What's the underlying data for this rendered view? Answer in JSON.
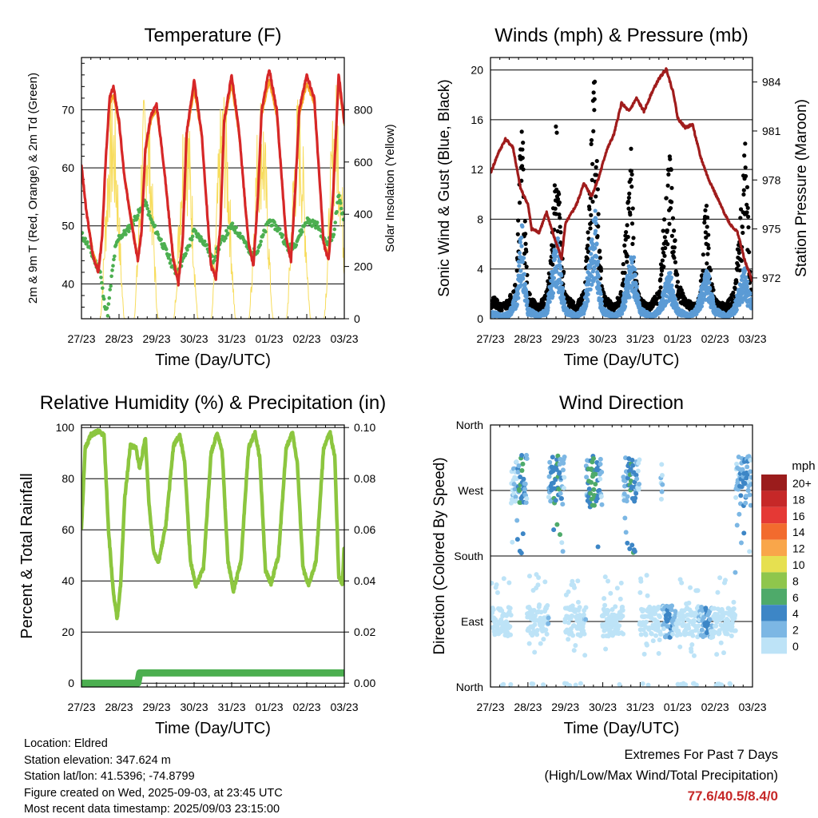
{
  "info": {
    "location": "Location: Eldred",
    "elevation": "Station elevation: 347.624 m",
    "latlon": "Station lat/lon: 41.5396; -74.8799",
    "created": "Figure created on Wed, 2025-09-03, at 23:45 UTC",
    "latest": "Most recent data timestamp: 2025/09/03 23:15:00"
  },
  "extremes": {
    "title": "Extremes For Past 7 Days",
    "subtitle": "(High/Low/Max Wind/Total Precipitation)",
    "values": "77.6/40.5/8.4/0",
    "color": "#c62828"
  },
  "colors": {
    "temp_2m": "#d62728",
    "temp_9m": "#f5a623",
    "dewpoint": "#4caf50",
    "solar": "#f7dc5b",
    "gust": "#000000",
    "wind": "#5b9bd5",
    "pressure": "#a01c1c",
    "rh": "#8cc63f",
    "rain": "#4caf50"
  },
  "chart_data": [
    {
      "type": "line",
      "title": "Temperature (F)",
      "xlabel": "Time (Day/UTC)",
      "ylabel": "2m & 9m T (Red, Orange) & 2m Td (Green)",
      "ylabel_right": "Solar Insolation (Yellow)",
      "x_ticks": [
        "27/23",
        "28/23",
        "29/23",
        "30/23",
        "31/23",
        "01/23",
        "02/23",
        "03/23"
      ],
      "xlim": [
        0,
        7
      ],
      "ylim": [
        34,
        79
      ],
      "y_ticks": [
        40,
        50,
        60,
        70
      ],
      "ylim_right": [
        0,
        1000
      ],
      "y_ticks_right": [
        0,
        200,
        400,
        600,
        800
      ],
      "grid": true,
      "series": [
        {
          "name": "2m T",
          "color": "#d62728",
          "x": [
            0,
            0.12,
            0.3,
            0.45,
            0.55,
            0.65,
            0.75,
            0.85,
            1.0,
            1.15,
            1.3,
            1.5,
            1.6,
            1.7,
            1.85,
            2.0,
            2.2,
            2.45,
            2.58,
            2.7,
            2.8,
            3.0,
            3.2,
            3.45,
            3.58,
            3.7,
            3.8,
            4.0,
            4.2,
            4.45,
            4.58,
            4.7,
            4.8,
            5.0,
            5.2,
            5.45,
            5.58,
            5.7,
            5.8,
            6.0,
            6.2,
            6.45,
            6.58,
            6.7,
            6.85,
            7.0
          ],
          "y": [
            60.5,
            53,
            45,
            42,
            48,
            62,
            72,
            74,
            68,
            58,
            52,
            44,
            49,
            63,
            69,
            71,
            60,
            44,
            40,
            48,
            66,
            75,
            66,
            43,
            41,
            50,
            68,
            76,
            66,
            47,
            43,
            55,
            70,
            77,
            70,
            48,
            44,
            57,
            70,
            76,
            72,
            47,
            44,
            55,
            76,
            68
          ]
        },
        {
          "name": "9m T",
          "color": "#f5a623",
          "x": [
            0,
            0.12,
            0.3,
            0.45,
            0.55,
            0.65,
            0.75,
            0.85,
            1.0,
            1.15,
            1.3,
            1.5,
            1.6,
            1.7,
            1.85,
            2.0,
            2.2,
            2.45,
            2.58,
            2.7,
            2.8,
            3.0,
            3.2,
            3.45,
            3.58,
            3.7,
            3.8,
            4.0,
            4.2,
            4.45,
            4.58,
            4.7,
            4.8,
            5.0,
            5.2,
            5.45,
            5.58,
            5.7,
            5.8,
            6.0,
            6.2,
            6.45,
            6.58,
            6.7,
            6.85,
            7.0
          ],
          "y": [
            60,
            53,
            45.5,
            42.5,
            48.5,
            61.5,
            71,
            72.5,
            67.5,
            58.5,
            52.5,
            44.5,
            49.5,
            62.5,
            68,
            70,
            60,
            44.5,
            41,
            48.5,
            65.5,
            73.5,
            65.5,
            43.5,
            41.5,
            50.5,
            67.5,
            74.5,
            65.5,
            47.5,
            43.5,
            55.5,
            69,
            75,
            69,
            48.5,
            44.5,
            57,
            69,
            74.5,
            71,
            47.5,
            44.5,
            55.5,
            74.5,
            67.5
          ]
        },
        {
          "name": "2m Td",
          "color": "#4caf50",
          "x": [
            0,
            0.15,
            0.35,
            0.5,
            0.6,
            0.7,
            0.8,
            0.9,
            1.0,
            1.2,
            1.5,
            1.7,
            1.85,
            2.0,
            2.3,
            2.5,
            2.7,
            3.0,
            3.3,
            3.5,
            3.7,
            4.0,
            4.3,
            4.5,
            4.7,
            5.0,
            5.3,
            5.5,
            5.7,
            6.0,
            6.3,
            6.5,
            6.7,
            6.85,
            7.0
          ],
          "y": [
            48.5,
            47,
            44,
            42,
            37,
            35,
            41,
            46,
            48,
            49,
            52,
            54,
            51,
            49,
            45,
            42,
            44,
            49,
            47,
            44,
            47,
            50,
            48,
            45,
            46,
            51,
            49,
            46,
            47,
            51,
            50,
            47,
            48,
            55,
            51
          ]
        },
        {
          "name": "Solar Insolation",
          "color": "#f7dc5b",
          "axis": "right",
          "peaks_x": [
            0.82,
            1.72,
            2.78,
            3.78,
            4.78,
            5.78,
            6.78
          ],
          "peaks_y": [
            880,
            920,
            890,
            910,
            900,
            880,
            920
          ]
        }
      ]
    },
    {
      "type": "scatter",
      "title": "Winds (mph) & Pressure (mb)",
      "xlabel": "Time (Day/UTC)",
      "ylabel": "Sonic Wind & Gust (Blue, Black)",
      "ylabel_right": "Station Pressure (Maroon)",
      "x_ticks": [
        "27/23",
        "28/23",
        "29/23",
        "30/23",
        "31/23",
        "01/23",
        "02/23",
        "03/23"
      ],
      "xlim": [
        0,
        7
      ],
      "ylim": [
        0,
        21
      ],
      "y_ticks": [
        0,
        4,
        8,
        12,
        16,
        20
      ],
      "ylim_right": [
        969.5,
        985.5
      ],
      "y_ticks_right": [
        972,
        975,
        978,
        981,
        984
      ],
      "grid": true,
      "series": [
        {
          "name": "Gust",
          "color": "#000000",
          "x": [
            0.1,
            0.3,
            0.5,
            0.7,
            0.75,
            0.8,
            0.85,
            0.9,
            1.0,
            1.1,
            1.3,
            1.5,
            1.6,
            1.7,
            1.75,
            1.8,
            1.85,
            1.9,
            2.0,
            2.1,
            2.3,
            2.5,
            2.6,
            2.7,
            2.75,
            2.8,
            2.85,
            2.9,
            3.0,
            3.1,
            3.3,
            3.5,
            3.6,
            3.7,
            3.75,
            3.8,
            3.85,
            3.9,
            4.0,
            4.2,
            4.5,
            4.6,
            4.7,
            4.8,
            4.9,
            5.0,
            5.2,
            5.5,
            5.6,
            5.7,
            5.75,
            5.8,
            5.9,
            6.0,
            6.3,
            6.5,
            6.7,
            6.8,
            6.85,
            6.9,
            6.95
          ],
          "y": [
            1.5,
            1,
            1.5,
            3,
            8,
            13,
            17,
            9,
            2,
            1.5,
            1,
            2,
            4,
            10,
            14,
            12,
            8,
            5,
            2,
            1.5,
            1,
            2,
            6,
            13,
            17,
            19,
            11,
            6,
            2,
            1.5,
            1,
            2,
            6,
            10,
            14,
            9,
            5,
            3,
            1.5,
            1,
            2,
            6,
            9,
            12,
            7,
            3,
            1.5,
            1,
            2,
            6,
            9,
            7,
            3,
            1.5,
            1,
            2,
            8,
            13,
            10,
            6,
            3
          ]
        },
        {
          "name": "Sonic Wind",
          "color": "#5b9bd5",
          "x": [
            0.1,
            0.3,
            0.5,
            0.7,
            0.8,
            0.85,
            0.9,
            1.0,
            1.3,
            1.5,
            1.7,
            1.8,
            1.9,
            2.0,
            2.3,
            2.5,
            2.7,
            2.8,
            2.85,
            2.9,
            3.0,
            3.3,
            3.5,
            3.7,
            3.8,
            3.9,
            4.0,
            4.3,
            4.5,
            4.7,
            4.8,
            4.9,
            5.0,
            5.3,
            5.5,
            5.7,
            5.8,
            5.9,
            6.0,
            6.3,
            6.5,
            6.7,
            6.8,
            6.9
          ],
          "y": [
            0.5,
            0.3,
            0.5,
            2,
            6.5,
            7,
            4,
            0.8,
            0.3,
            0.8,
            5,
            6,
            3,
            0.8,
            0.3,
            1,
            6,
            8.4,
            6,
            3,
            0.8,
            0.3,
            0.8,
            4,
            5.5,
            2.5,
            0.8,
            0.3,
            0.8,
            3,
            3.5,
            2,
            0.8,
            0.3,
            0.8,
            3,
            4,
            2,
            0.8,
            0.3,
            0.8,
            3,
            4,
            2
          ]
        },
        {
          "name": "Station Pressure",
          "color": "#a01c1c",
          "axis": "right",
          "x": [
            0,
            0.2,
            0.4,
            0.6,
            0.8,
            1.0,
            1.1,
            1.3,
            1.5,
            1.7,
            1.9,
            2.0,
            2.3,
            2.5,
            2.7,
            2.9,
            3.1,
            3.3,
            3.5,
            3.7,
            3.9,
            4.1,
            4.3,
            4.5,
            4.7,
            4.9,
            5.0,
            5.2,
            5.4,
            5.6,
            5.8,
            6.0,
            6.2,
            6.4,
            6.6,
            6.8,
            7.0
          ],
          "y": [
            978.4,
            979.6,
            980.5,
            980,
            977.5,
            976.5,
            975,
            974.8,
            976,
            974.5,
            973.2,
            975.3,
            976.5,
            977.8,
            977,
            978.2,
            979.8,
            980.8,
            982.7,
            982.2,
            983.0,
            982.2,
            983.3,
            984.2,
            984.8,
            983.2,
            981.8,
            981.2,
            981.4,
            979.5,
            978.2,
            977.2,
            976.2,
            975.3,
            974.8,
            973.0,
            971.8
          ]
        }
      ]
    },
    {
      "type": "line",
      "title": "Relative Humidity (%) & Precipitation (in)",
      "xlabel": "Time (Day/UTC)",
      "ylabel": "Percent & Total Rainfall",
      "x_ticks": [
        "27/23",
        "28/23",
        "29/23",
        "30/23",
        "31/23",
        "01/23",
        "02/23",
        "03/23"
      ],
      "xlim": [
        0,
        7
      ],
      "ylim": [
        -1.5,
        101
      ],
      "y_ticks": [
        0,
        20,
        40,
        60,
        80,
        100
      ],
      "ylim_right": [
        -0.0015,
        0.101
      ],
      "y_ticks_right": [
        0.0,
        0.02,
        0.04,
        0.06,
        0.08,
        0.1
      ],
      "grid": true,
      "series": [
        {
          "name": "RH",
          "color": "#8cc63f",
          "x": [
            0,
            0.1,
            0.25,
            0.45,
            0.6,
            0.72,
            0.85,
            0.95,
            1.05,
            1.15,
            1.3,
            1.45,
            1.55,
            1.7,
            1.8,
            1.92,
            2.05,
            2.25,
            2.45,
            2.62,
            2.75,
            2.9,
            3.05,
            3.25,
            3.45,
            3.62,
            3.75,
            3.9,
            4.05,
            4.25,
            4.45,
            4.62,
            4.75,
            4.9,
            5.05,
            5.25,
            5.45,
            5.62,
            5.75,
            5.9,
            6.05,
            6.25,
            6.45,
            6.62,
            6.75,
            6.85,
            6.95,
            7.0
          ],
          "y": [
            61,
            92,
            97,
            98.5,
            97,
            60,
            35,
            25,
            40,
            72,
            93,
            92,
            84,
            96,
            70,
            52,
            47,
            62,
            93,
            97,
            86,
            48,
            38,
            45,
            90,
            98,
            90,
            48,
            36,
            48,
            92,
            98,
            88,
            44,
            39,
            50,
            92,
            98,
            86,
            45,
            38,
            48,
            92,
            98,
            88,
            42,
            39,
            55
          ]
        },
        {
          "name": "Precipitation",
          "color": "#4caf50",
          "axis": "right",
          "x": [
            0,
            1.5,
            1.55,
            7.0
          ],
          "y": [
            0.0,
            0.0,
            0.004,
            0.004
          ]
        }
      ]
    },
    {
      "type": "scatter",
      "title": "Wind Direction",
      "xlabel": "Time (Day/UTC)",
      "ylabel": "Direction (Colored By Speed)",
      "x_ticks": [
        "27/23",
        "28/23",
        "29/23",
        "30/23",
        "31/23",
        "01/23",
        "02/23",
        "03/23"
      ],
      "y_ticks": [
        "North",
        "East",
        "South",
        "West",
        "North"
      ],
      "y_tick_values": [
        0,
        90,
        180,
        270,
        360
      ],
      "xlim": [
        0,
        7
      ],
      "ylim": [
        0,
        360
      ],
      "grid": true,
      "legend": {
        "title": "mph",
        "labels": [
          "20+",
          "18",
          "16",
          "14",
          "12",
          "10",
          "8",
          "6",
          "4",
          "2",
          "0"
        ],
        "colors": [
          "#9b1c1c",
          "#c62828",
          "#e53935",
          "#f26b2e",
          "#f9a64a",
          "#e6e050",
          "#8fc64c",
          "#4eaa6a",
          "#3d86c6",
          "#7cb7e4",
          "#bde3f7"
        ],
        "placement": "right"
      }
    }
  ]
}
